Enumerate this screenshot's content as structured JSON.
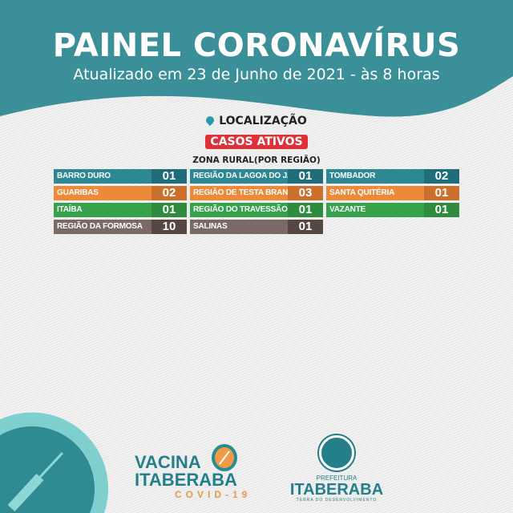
{
  "header": {
    "title": "PAINEL CORONAVÍRUS",
    "subtitle": "Atualizado em 23 de Junho de 2021 - às 8 horas"
  },
  "location_label": "LOCALIZAÇÃO",
  "badge": "CASOS ATIVOS",
  "zone_title": "ZONA RURAL(POR REGIÃO)",
  "regions": [
    {
      "name": "BARRO DURO",
      "value": "01",
      "color": "teal"
    },
    {
      "name": "REGIÃO DA LAGOA DO JACU",
      "value": "01",
      "color": "teal"
    },
    {
      "name": "TOMBADOR",
      "value": "02",
      "color": "teal"
    },
    {
      "name": "GUARIBAS",
      "value": "02",
      "color": "orange"
    },
    {
      "name": "REGIÃO DE TESTA BRANCA",
      "value": "03",
      "color": "orange"
    },
    {
      "name": "SANTA QUITÉRIA",
      "value": "01",
      "color": "orange"
    },
    {
      "name": "ITAÍBA",
      "value": "01",
      "color": "green"
    },
    {
      "name": "REGIÃO DO TRAVESSÃO",
      "value": "01",
      "color": "green"
    },
    {
      "name": "VAZANTE",
      "value": "01",
      "color": "green"
    },
    {
      "name": "REGIÃO DA FORMOSA",
      "value": "10",
      "color": "brown"
    },
    {
      "name": "SALINAS",
      "value": "01",
      "color": "brown"
    }
  ],
  "colors": {
    "teal": "#2e8894",
    "orange": "#ec8a3a",
    "green": "#36a24c",
    "brown": "#7b6a63",
    "badge": "#e03138"
  },
  "footer": {
    "vacina": {
      "line1": "VACINA",
      "line2": "ITABERABA",
      "line3": "COVID-19"
    },
    "prefeitura": {
      "line1": "PREFEITURA",
      "line2": "ITABERABA",
      "line3": "TERRA DO DESENVOLVIMENTO"
    }
  }
}
